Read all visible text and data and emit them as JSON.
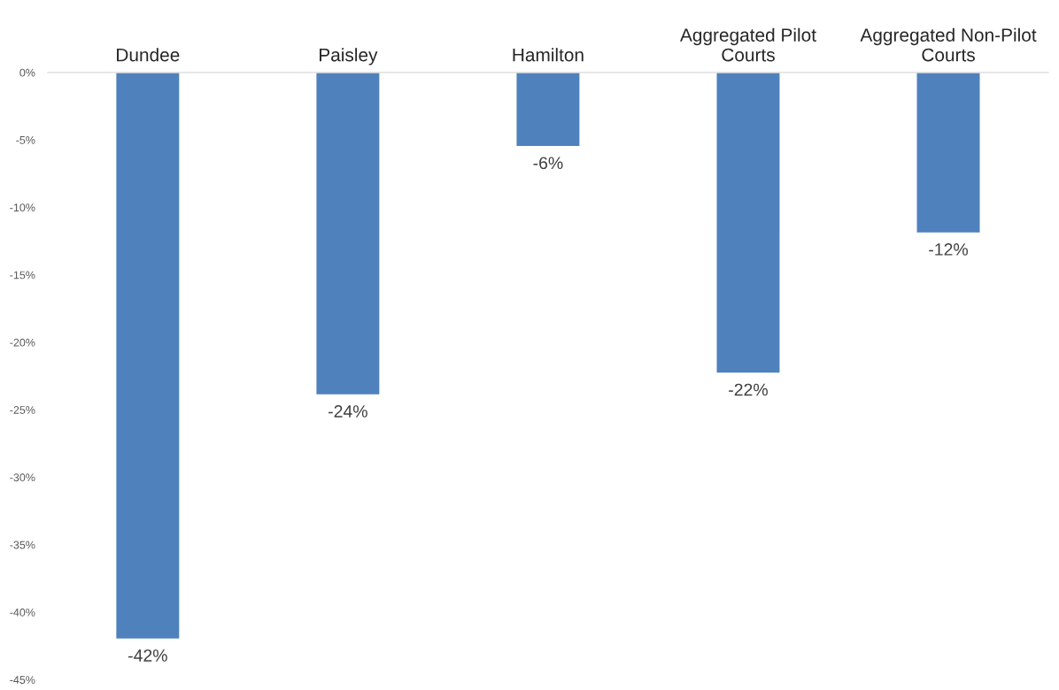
{
  "chart_data": {
    "type": "bar",
    "categories": [
      "Dundee",
      "Paisley",
      "Hamilton",
      "Aggregated Pilot\nCourts",
      "Aggregated Non-Pilot\nCourts"
    ],
    "values": [
      -42,
      -23.9,
      -5.5,
      -22.3,
      -11.9
    ],
    "value_labels": [
      "-42%",
      "-24%",
      "-6%",
      "-22%",
      "-12%"
    ],
    "color": "#4f81bd",
    "ylim": [
      -45,
      0
    ],
    "yticks": [
      {
        "value": 0,
        "label": "0%"
      },
      {
        "value": -5,
        "label": "-5%"
      },
      {
        "value": -10,
        "label": "-10%"
      },
      {
        "value": -15,
        "label": "-15%"
      },
      {
        "value": -20,
        "label": "-20%"
      },
      {
        "value": -25,
        "label": "-25%"
      },
      {
        "value": -30,
        "label": "-30%"
      },
      {
        "value": -35,
        "label": "-35%"
      },
      {
        "value": -40,
        "label": "-40%"
      },
      {
        "value": -45,
        "label": "-45%"
      }
    ],
    "grid": false,
    "legend": false
  }
}
